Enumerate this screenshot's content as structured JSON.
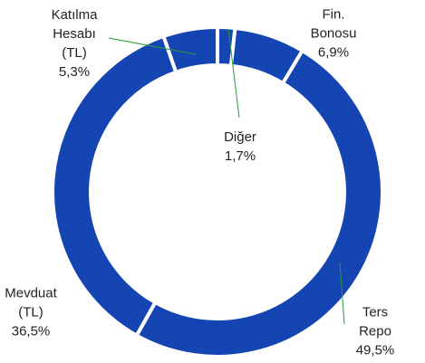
{
  "chart_data": {
    "type": "donut",
    "categories": [
      "Diğer",
      "Fin.\nBonosu",
      "Ters Repo",
      "Mevduat\n(TL)",
      "Katılma\nHesabı\n(TL)"
    ],
    "values": [
      1.7,
      6.9,
      49.5,
      36.5,
      5.3
    ],
    "value_labels": [
      "1,7%",
      "6,9%",
      "49,5%",
      "36,5%",
      "5,3%"
    ],
    "color": "#1445b3"
  }
}
